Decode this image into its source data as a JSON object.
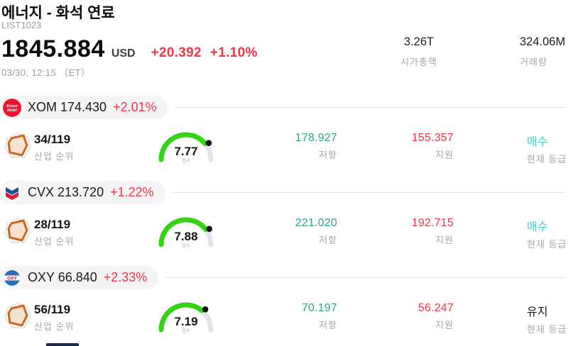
{
  "header": {
    "title": "에너지 - 화석 연료",
    "list_id": "LIST1023",
    "price": "1845.884",
    "currency": "USD",
    "change": "+20.392",
    "change_pct": "+1.10%",
    "datetime": "03/30, 12:15 （ET）",
    "market_cap": {
      "value": "3.26T",
      "label": "시가총액"
    },
    "volume": {
      "value": "324.06M",
      "label": "거래량"
    }
  },
  "labels": {
    "rank": "산업 순위",
    "score": "점수",
    "resistance": "저항",
    "support": "지원",
    "rating": "현재 등급"
  },
  "colors": {
    "accent_red": "#f23645",
    "teal_value": "#2aa68b",
    "rating_buy": "#45d0c4",
    "rating_hold": "#1b1b1d",
    "gauge_green": "#34d313",
    "gauge_track": "#e3e3ec",
    "gauge_dot": "#111111",
    "pill_bg": "#f5f5f7",
    "muted_text": "#a4a7ae"
  },
  "stocks": [
    {
      "symbol": "XOM",
      "logo": "exxonmobil-logo",
      "price": "174.430",
      "change_pct": "+2.01%",
      "symbol_price": "XOM 174.430",
      "rank": "34/119",
      "score": 7.77,
      "score_text": "7.77",
      "resistance": "178.927",
      "support": "155.357",
      "rating": "매수",
      "rating_type": "buy",
      "rating_color": "#45d0c4"
    },
    {
      "symbol": "CVX",
      "logo": "chevron-logo",
      "price": "213.720",
      "change_pct": "+1.22%",
      "symbol_price": "CVX 213.720",
      "rank": "28/119",
      "score": 7.88,
      "score_text": "7.88",
      "resistance": "221.020",
      "support": "192.715",
      "rating": "매수",
      "rating_type": "buy",
      "rating_color": "#45d0c4"
    },
    {
      "symbol": "OXY",
      "logo": "oxy-logo",
      "price": "66.840",
      "change_pct": "+2.33%",
      "symbol_price": "OXY 66.840",
      "rank": "56/119",
      "score": 7.19,
      "score_text": "7.19",
      "resistance": "70.197",
      "support": "56.247",
      "rating": "유지",
      "rating_type": "hold",
      "rating_color": "#1b1b1d"
    }
  ]
}
